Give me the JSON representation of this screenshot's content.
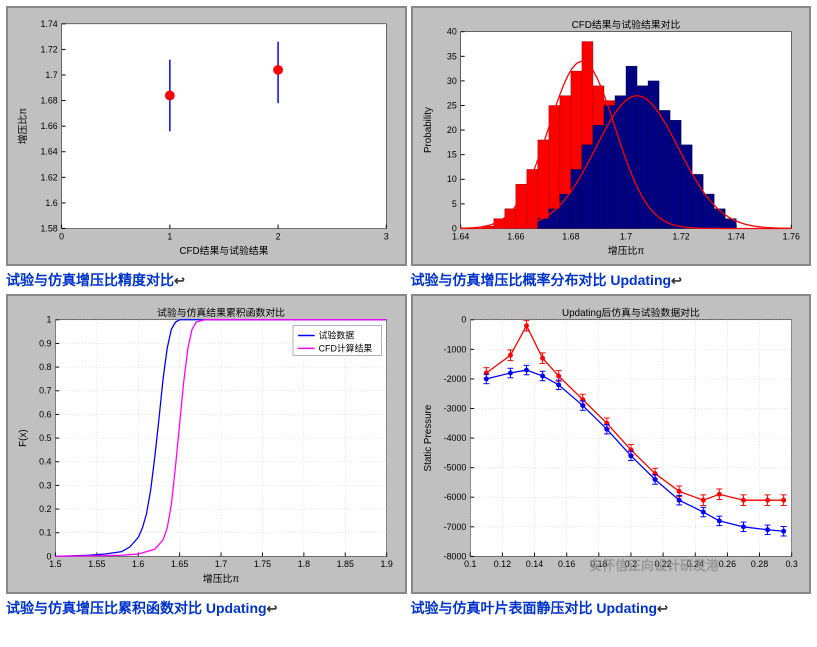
{
  "chart1": {
    "type": "errorbar",
    "bg_outer": "#c0c0c0",
    "bg_inner": "#ffffff",
    "xlabel": "CFD结果与试验结果",
    "ylabel": "增压比π",
    "xlim": [
      0,
      3
    ],
    "xticks": [
      0,
      1,
      2,
      3
    ],
    "ylim": [
      1.58,
      1.74
    ],
    "yticks": [
      1.58,
      1.6,
      1.62,
      1.64,
      1.66,
      1.68,
      1.7,
      1.72,
      1.74
    ],
    "points": [
      {
        "x": 1,
        "y": 1.684,
        "err_lo": 0.028,
        "err_hi": 0.028
      },
      {
        "x": 2,
        "y": 1.704,
        "err_lo": 0.026,
        "err_hi": 0.022
      }
    ],
    "marker_color": "#ff0000",
    "marker_size": 5,
    "err_color": "#0000ff"
  },
  "chart2": {
    "type": "histogram",
    "bg_outer": "#c0c0c0",
    "bg_inner": "#ffffff",
    "title": "CFD结果与试验结果对比",
    "xlabel": "增压比π",
    "ylabel": "Probability",
    "xlim": [
      1.64,
      1.76
    ],
    "xticks": [
      1.64,
      1.66,
      1.68,
      1.7,
      1.72,
      1.74,
      1.76
    ],
    "ylim": [
      0,
      40
    ],
    "yticks": [
      0,
      5,
      10,
      15,
      20,
      25,
      30,
      35,
      40
    ],
    "hist_red": {
      "color": "#ff0000",
      "edge": "#800000",
      "bins": [
        {
          "x": 1.648,
          "w": 0.004,
          "h": 0.5
        },
        {
          "x": 1.652,
          "w": 0.004,
          "h": 2
        },
        {
          "x": 1.656,
          "w": 0.004,
          "h": 4
        },
        {
          "x": 1.66,
          "w": 0.004,
          "h": 9
        },
        {
          "x": 1.664,
          "w": 0.004,
          "h": 12
        },
        {
          "x": 1.668,
          "w": 0.004,
          "h": 18
        },
        {
          "x": 1.672,
          "w": 0.004,
          "h": 25
        },
        {
          "x": 1.676,
          "w": 0.004,
          "h": 27
        },
        {
          "x": 1.68,
          "w": 0.004,
          "h": 32
        },
        {
          "x": 1.684,
          "w": 0.004,
          "h": 38
        },
        {
          "x": 1.688,
          "w": 0.004,
          "h": 29
        },
        {
          "x": 1.692,
          "w": 0.004,
          "h": 26
        },
        {
          "x": 1.696,
          "w": 0.004,
          "h": 12
        },
        {
          "x": 1.7,
          "w": 0.004,
          "h": 4
        }
      ]
    },
    "hist_blue": {
      "color": "#000080",
      "edge": "#000040",
      "bins": [
        {
          "x": 1.668,
          "w": 0.004,
          "h": 2
        },
        {
          "x": 1.672,
          "w": 0.004,
          "h": 4
        },
        {
          "x": 1.676,
          "w": 0.004,
          "h": 7
        },
        {
          "x": 1.68,
          "w": 0.004,
          "h": 12
        },
        {
          "x": 1.684,
          "w": 0.004,
          "h": 17
        },
        {
          "x": 1.688,
          "w": 0.004,
          "h": 21
        },
        {
          "x": 1.692,
          "w": 0.004,
          "h": 25
        },
        {
          "x": 1.696,
          "w": 0.004,
          "h": 27
        },
        {
          "x": 1.7,
          "w": 0.004,
          "h": 33
        },
        {
          "x": 1.704,
          "w": 0.004,
          "h": 29
        },
        {
          "x": 1.708,
          "w": 0.004,
          "h": 30
        },
        {
          "x": 1.712,
          "w": 0.004,
          "h": 24
        },
        {
          "x": 1.716,
          "w": 0.004,
          "h": 22
        },
        {
          "x": 1.72,
          "w": 0.004,
          "h": 17
        },
        {
          "x": 1.724,
          "w": 0.004,
          "h": 11
        },
        {
          "x": 1.728,
          "w": 0.004,
          "h": 7
        },
        {
          "x": 1.732,
          "w": 0.004,
          "h": 4
        },
        {
          "x": 1.736,
          "w": 0.004,
          "h": 2
        }
      ]
    },
    "curves": [
      {
        "color": "#ff0000",
        "mu": 1.684,
        "sigma": 0.012,
        "peak": 34
      },
      {
        "color": "#ff0000",
        "mu": 1.704,
        "sigma": 0.015,
        "peak": 27
      }
    ]
  },
  "chart3": {
    "type": "line",
    "bg_outer": "#c0c0c0",
    "bg_inner": "#ffffff",
    "title": "试验与仿真结果累积函数对比",
    "xlabel": "增压比π",
    "ylabel": "F(x)",
    "xlim": [
      1.5,
      1.9
    ],
    "xticks": [
      1.5,
      1.55,
      1.6,
      1.65,
      1.7,
      1.75,
      1.8,
      1.85,
      1.9
    ],
    "ylim": [
      0,
      1
    ],
    "yticks": [
      0,
      0.1,
      0.2,
      0.3,
      0.4,
      0.5,
      0.6,
      0.7,
      0.8,
      0.9,
      1
    ],
    "legend": [
      {
        "label": "试验数据",
        "color": "#0000ff"
      },
      {
        "label": "CFD计算结果",
        "color": "#ff00ff"
      }
    ],
    "series": [
      {
        "color": "#0000ff",
        "points": [
          [
            1.5,
            0.0
          ],
          [
            1.54,
            0.005
          ],
          [
            1.56,
            0.01
          ],
          [
            1.58,
            0.02
          ],
          [
            1.59,
            0.04
          ],
          [
            1.6,
            0.08
          ],
          [
            1.605,
            0.12
          ],
          [
            1.61,
            0.18
          ],
          [
            1.615,
            0.28
          ],
          [
            1.62,
            0.42
          ],
          [
            1.625,
            0.58
          ],
          [
            1.63,
            0.75
          ],
          [
            1.635,
            0.88
          ],
          [
            1.64,
            0.96
          ],
          [
            1.645,
            0.99
          ],
          [
            1.65,
            1.0
          ],
          [
            1.9,
            1.0
          ]
        ]
      },
      {
        "color": "#ff00ff",
        "points": [
          [
            1.5,
            0.0
          ],
          [
            1.58,
            0.005
          ],
          [
            1.6,
            0.01
          ],
          [
            1.62,
            0.03
          ],
          [
            1.63,
            0.07
          ],
          [
            1.635,
            0.12
          ],
          [
            1.64,
            0.22
          ],
          [
            1.645,
            0.38
          ],
          [
            1.65,
            0.56
          ],
          [
            1.655,
            0.74
          ],
          [
            1.66,
            0.88
          ],
          [
            1.665,
            0.96
          ],
          [
            1.67,
            0.99
          ],
          [
            1.68,
            1.0
          ],
          [
            1.9,
            1.0
          ]
        ]
      }
    ]
  },
  "chart4": {
    "type": "line-errorbar",
    "bg_outer": "#c0c0c0",
    "bg_inner": "#ffffff",
    "title": "Updating后仿真与试验数据对比",
    "xlabel": "",
    "ylabel": "Static Pressure",
    "xlim": [
      0.1,
      0.3
    ],
    "xticks": [
      0.1,
      0.12,
      0.14,
      0.16,
      0.18,
      0.2,
      0.22,
      0.24,
      0.26,
      0.28,
      0.3
    ],
    "ylim": [
      -8000,
      0
    ],
    "yticks": [
      -8000,
      -7000,
      -6000,
      -5000,
      -4000,
      -3000,
      -2000,
      -1000,
      0
    ],
    "series": [
      {
        "color": "#ff0000",
        "err": 180,
        "points": [
          [
            0.11,
            -1800
          ],
          [
            0.125,
            -1200
          ],
          [
            0.135,
            -200
          ],
          [
            0.145,
            -1300
          ],
          [
            0.155,
            -1900
          ],
          [
            0.17,
            -2700
          ],
          [
            0.185,
            -3500
          ],
          [
            0.2,
            -4400
          ],
          [
            0.215,
            -5200
          ],
          [
            0.23,
            -5800
          ],
          [
            0.245,
            -6100
          ],
          [
            0.255,
            -5900
          ],
          [
            0.27,
            -6100
          ],
          [
            0.285,
            -6100
          ],
          [
            0.295,
            -6100
          ]
        ]
      },
      {
        "color": "#0000ff",
        "err": 160,
        "points": [
          [
            0.11,
            -2000
          ],
          [
            0.125,
            -1800
          ],
          [
            0.135,
            -1700
          ],
          [
            0.145,
            -1900
          ],
          [
            0.155,
            -2200
          ],
          [
            0.17,
            -2900
          ],
          [
            0.185,
            -3700
          ],
          [
            0.2,
            -4600
          ],
          [
            0.215,
            -5400
          ],
          [
            0.23,
            -6100
          ],
          [
            0.245,
            -6500
          ],
          [
            0.255,
            -6800
          ],
          [
            0.27,
            -7000
          ],
          [
            0.285,
            -7100
          ],
          [
            0.295,
            -7150
          ]
        ]
      }
    ]
  },
  "captions": {
    "c1": "试验与仿真增压比精度对比",
    "c2a": "试验与仿真增压比概率分布对比 ",
    "c2b": "Updating",
    "c3a": "试验与仿真增压比累积函数对比 ",
    "c3b": "Updating",
    "c4a": "试验与仿真叶片表面静压对比 ",
    "c4b": "Updating"
  },
  "watermark": "安怀信正向设计研发港"
}
